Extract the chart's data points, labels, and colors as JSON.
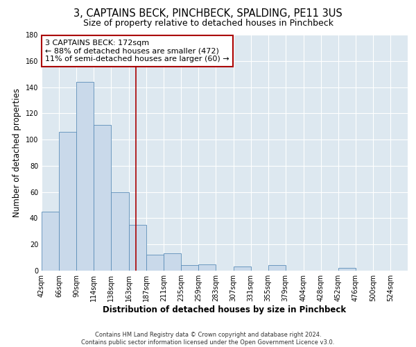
{
  "title": "3, CAPTAINS BECK, PINCHBECK, SPALDING, PE11 3US",
  "subtitle": "Size of property relative to detached houses in Pinchbeck",
  "xlabel": "Distribution of detached houses by size in Pinchbeck",
  "ylabel": "Number of detached properties",
  "bin_labels": [
    "42sqm",
    "66sqm",
    "90sqm",
    "114sqm",
    "138sqm",
    "163sqm",
    "187sqm",
    "211sqm",
    "235sqm",
    "259sqm",
    "283sqm",
    "307sqm",
    "331sqm",
    "355sqm",
    "379sqm",
    "404sqm",
    "428sqm",
    "452sqm",
    "476sqm",
    "500sqm",
    "524sqm"
  ],
  "bin_edges": [
    42,
    66,
    90,
    114,
    138,
    163,
    187,
    211,
    235,
    259,
    283,
    307,
    331,
    355,
    379,
    404,
    428,
    452,
    476,
    500,
    524,
    548
  ],
  "counts": [
    45,
    106,
    144,
    111,
    60,
    35,
    12,
    13,
    4,
    5,
    0,
    3,
    0,
    4,
    0,
    0,
    0,
    2,
    0,
    0,
    0
  ],
  "bar_color": "#c9d9ea",
  "bar_edgecolor": "#5b8db8",
  "property_size": 172,
  "vline_color": "#aa0000",
  "annotation_line1": "3 CAPTAINS BECK: 172sqm",
  "annotation_line2": "← 88% of detached houses are smaller (472)",
  "annotation_line3": "11% of semi-detached houses are larger (60) →",
  "annotation_box_edgecolor": "#aa0000",
  "ylim": [
    0,
    180
  ],
  "yticks": [
    0,
    20,
    40,
    60,
    80,
    100,
    120,
    140,
    160,
    180
  ],
  "footer_text": "Contains HM Land Registry data © Crown copyright and database right 2024.\nContains public sector information licensed under the Open Government Licence v3.0.",
  "fig_background": "#ffffff",
  "plot_background": "#dde8f0",
  "grid_color": "#ffffff",
  "title_fontsize": 10.5,
  "subtitle_fontsize": 9,
  "axis_label_fontsize": 8.5,
  "tick_fontsize": 7,
  "annotation_fontsize": 8,
  "footer_fontsize": 6
}
